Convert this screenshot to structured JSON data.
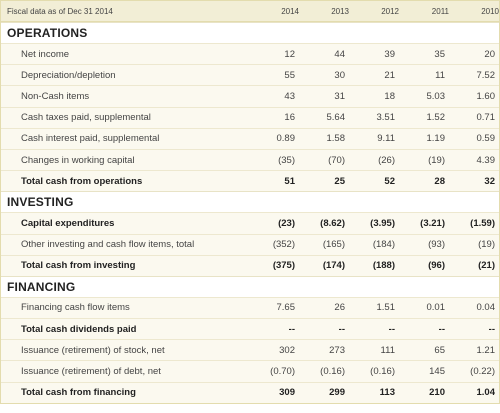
{
  "header": {
    "label": "Fiscal data as of Dec 31 2014",
    "years": [
      "2014",
      "2013",
      "2012",
      "2011",
      "2010"
    ]
  },
  "sections": [
    {
      "title": "OPERATIONS",
      "rows": [
        {
          "label": "Net income",
          "values": [
            "12",
            "44",
            "39",
            "35",
            "20"
          ],
          "total": false
        },
        {
          "label": "Depreciation/depletion",
          "values": [
            "55",
            "30",
            "21",
            "11",
            "7.52"
          ],
          "total": false
        },
        {
          "label": "Non-Cash items",
          "values": [
            "43",
            "31",
            "18",
            "5.03",
            "1.60"
          ],
          "total": false
        },
        {
          "label": "Cash taxes paid, supplemental",
          "values": [
            "16",
            "5.64",
            "3.51",
            "1.52",
            "0.71"
          ],
          "total": false
        },
        {
          "label": "Cash interest paid, supplemental",
          "values": [
            "0.89",
            "1.58",
            "9.11",
            "1.19",
            "0.59"
          ],
          "total": false
        },
        {
          "label": "Changes in working capital",
          "values": [
            "(35)",
            "(70)",
            "(26)",
            "(19)",
            "4.39"
          ],
          "total": false
        },
        {
          "label": "Total cash from operations",
          "values": [
            "51",
            "25",
            "52",
            "28",
            "32"
          ],
          "total": true
        }
      ]
    },
    {
      "title": "INVESTING",
      "rows": [
        {
          "label": "Capital expenditures",
          "values": [
            "(23)",
            "(8.62)",
            "(3.95)",
            "(3.21)",
            "(1.59)"
          ],
          "total": true
        },
        {
          "label": "Other investing and cash flow items, total",
          "values": [
            "(352)",
            "(165)",
            "(184)",
            "(93)",
            "(19)"
          ],
          "total": false
        },
        {
          "label": "Total cash from investing",
          "values": [
            "(375)",
            "(174)",
            "(188)",
            "(96)",
            "(21)"
          ],
          "total": true
        }
      ]
    },
    {
      "title": "FINANCING",
      "rows": [
        {
          "label": "Financing cash flow items",
          "values": [
            "7.65",
            "26",
            "1.51",
            "0.01",
            "0.04"
          ],
          "total": false
        },
        {
          "label": "Total cash dividends paid",
          "values": [
            "--",
            "--",
            "--",
            "--",
            "--"
          ],
          "total": true
        },
        {
          "label": "Issuance (retirement) of stock, net",
          "values": [
            "302",
            "273",
            "111",
            "65",
            "1.21"
          ],
          "total": false
        },
        {
          "label": "Issuance (retirement) of debt, net",
          "values": [
            "(0.70)",
            "(0.16)",
            "(0.16)",
            "145",
            "(0.22)"
          ],
          "total": false
        },
        {
          "label": "Total cash from financing",
          "values": [
            "309",
            "299",
            "113",
            "210",
            "1.04"
          ],
          "total": true
        }
      ]
    }
  ]
}
